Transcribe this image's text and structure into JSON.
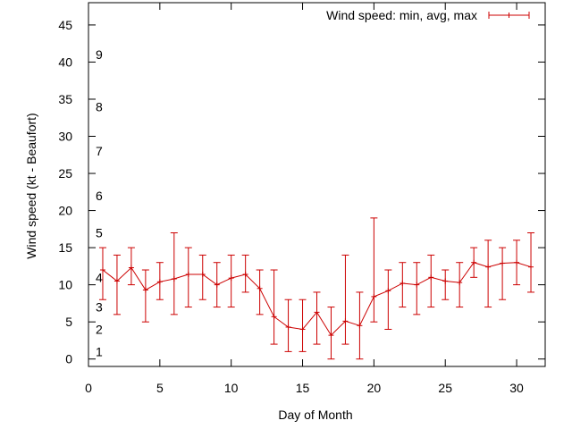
{
  "chart_data": {
    "type": "line",
    "xlabel": "Day of Month",
    "ylabel": "Wind speed (kt - Beaufort)",
    "xlim": [
      0,
      32
    ],
    "ylim": [
      -1,
      48
    ],
    "x_ticks": [
      0,
      5,
      10,
      15,
      20,
      25,
      30
    ],
    "y_ticks": [
      0,
      5,
      10,
      15,
      20,
      25,
      30,
      35,
      40,
      45
    ],
    "beaufort_labels": [
      {
        "label": "1",
        "y": 1
      },
      {
        "label": "2",
        "y": 4
      },
      {
        "label": "3",
        "y": 7
      },
      {
        "label": "4",
        "y": 11
      },
      {
        "label": "5",
        "y": 17
      },
      {
        "label": "6",
        "y": 22
      },
      {
        "label": "7",
        "y": 28
      },
      {
        "label": "8",
        "y": 34
      },
      {
        "label": "9",
        "y": 41
      }
    ],
    "grid": false,
    "legend_position": "top-right",
    "series": [
      {
        "name": "Wind speed: min, avg, max",
        "color": "#cc0000",
        "x": [
          1,
          2,
          3,
          4,
          5,
          6,
          7,
          8,
          9,
          10,
          11,
          12,
          13,
          14,
          15,
          16,
          17,
          18,
          19,
          20,
          21,
          22,
          23,
          24,
          25,
          26,
          27,
          28,
          29,
          30,
          31
        ],
        "avg": [
          12,
          10.5,
          12.3,
          9.3,
          10.4,
          10.8,
          11.4,
          11.4,
          10,
          10.9,
          11.4,
          9.5,
          5.7,
          4.3,
          4,
          6.3,
          3.2,
          5.1,
          4.5,
          8.4,
          9.2,
          10.2,
          10,
          11,
          10.5,
          10.3,
          13,
          12.4,
          12.9,
          13,
          12.4
        ],
        "min": [
          8,
          6,
          10,
          5,
          8,
          6,
          7,
          8,
          7,
          7,
          9,
          6,
          2,
          1,
          1,
          2,
          0,
          2,
          0,
          5,
          4,
          7,
          6,
          7,
          8,
          7,
          11,
          7,
          8,
          10,
          9
        ],
        "max": [
          15,
          14,
          15,
          12,
          13,
          17,
          15,
          14,
          13,
          14,
          14,
          12,
          12,
          8,
          8,
          9,
          7,
          14,
          9,
          19,
          12,
          13,
          13,
          14,
          12,
          13,
          15,
          16,
          15,
          16,
          17
        ]
      }
    ]
  }
}
